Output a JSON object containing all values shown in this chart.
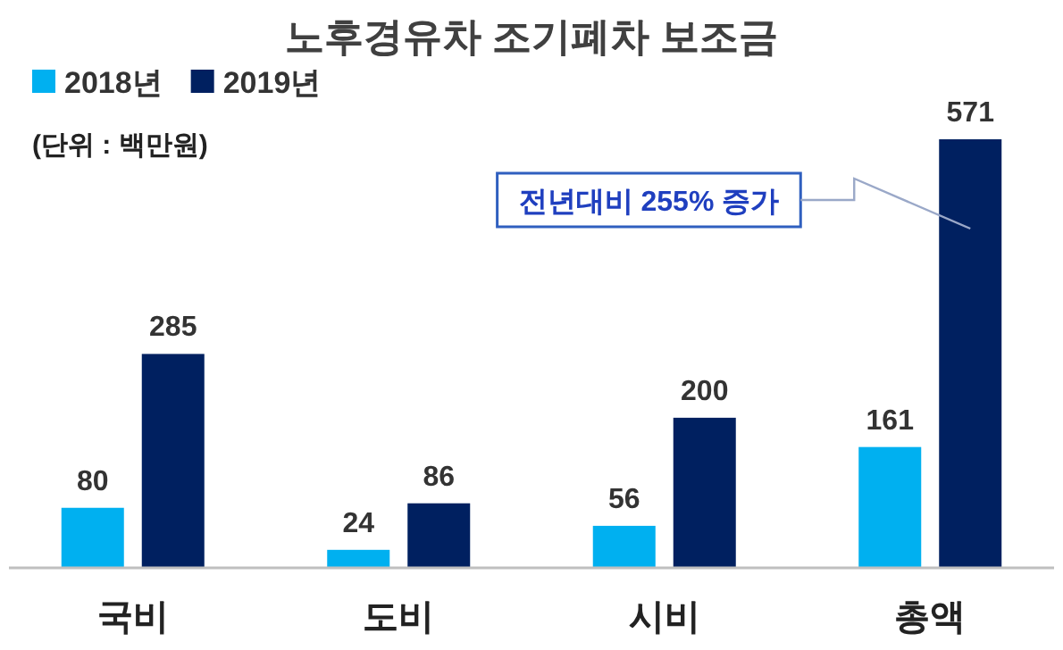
{
  "chart_data": {
    "type": "bar",
    "title": "노후경유차 조기폐차 보조금",
    "categories": [
      "국비",
      "도비",
      "시비",
      "총액"
    ],
    "series": [
      {
        "name": "2018년",
        "color": "#00b0f0",
        "values": [
          80,
          24,
          56,
          161
        ]
      },
      {
        "name": "2019년",
        "color": "#002060",
        "values": [
          285,
          86,
          200,
          571
        ]
      }
    ],
    "data_labels": true,
    "legend": "top left",
    "annotations": [
      "(단위 : 백만원)",
      "전년대비 255% 증가"
    ]
  }
}
